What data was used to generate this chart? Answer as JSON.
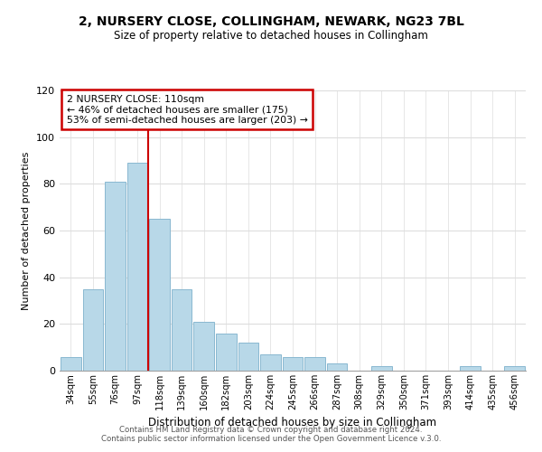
{
  "title": "2, NURSERY CLOSE, COLLINGHAM, NEWARK, NG23 7BL",
  "subtitle": "Size of property relative to detached houses in Collingham",
  "xlabel": "Distribution of detached houses by size in Collingham",
  "ylabel": "Number of detached properties",
  "bar_labels": [
    "34sqm",
    "55sqm",
    "76sqm",
    "97sqm",
    "118sqm",
    "139sqm",
    "160sqm",
    "182sqm",
    "203sqm",
    "224sqm",
    "245sqm",
    "266sqm",
    "287sqm",
    "308sqm",
    "329sqm",
    "350sqm",
    "371sqm",
    "393sqm",
    "414sqm",
    "435sqm",
    "456sqm"
  ],
  "bar_values": [
    6,
    35,
    81,
    89,
    65,
    35,
    21,
    16,
    12,
    7,
    6,
    6,
    3,
    0,
    2,
    0,
    0,
    0,
    2,
    0,
    2
  ],
  "bar_color": "#b8d8e8",
  "bar_edge_color": "#89b8d0",
  "vline_x_index": 4,
  "vline_color": "#cc0000",
  "ylim": [
    0,
    120
  ],
  "yticks": [
    0,
    20,
    40,
    60,
    80,
    100,
    120
  ],
  "annotation_title": "2 NURSERY CLOSE: 110sqm",
  "annotation_line1": "← 46% of detached houses are smaller (175)",
  "annotation_line2": "53% of semi-detached houses are larger (203) →",
  "annotation_box_color": "#ffffff",
  "annotation_box_edge_color": "#cc0000",
  "footer_line1": "Contains HM Land Registry data © Crown copyright and database right 2024.",
  "footer_line2": "Contains public sector information licensed under the Open Government Licence v.3.0.",
  "background_color": "#ffffff",
  "grid_color": "#dddddd"
}
